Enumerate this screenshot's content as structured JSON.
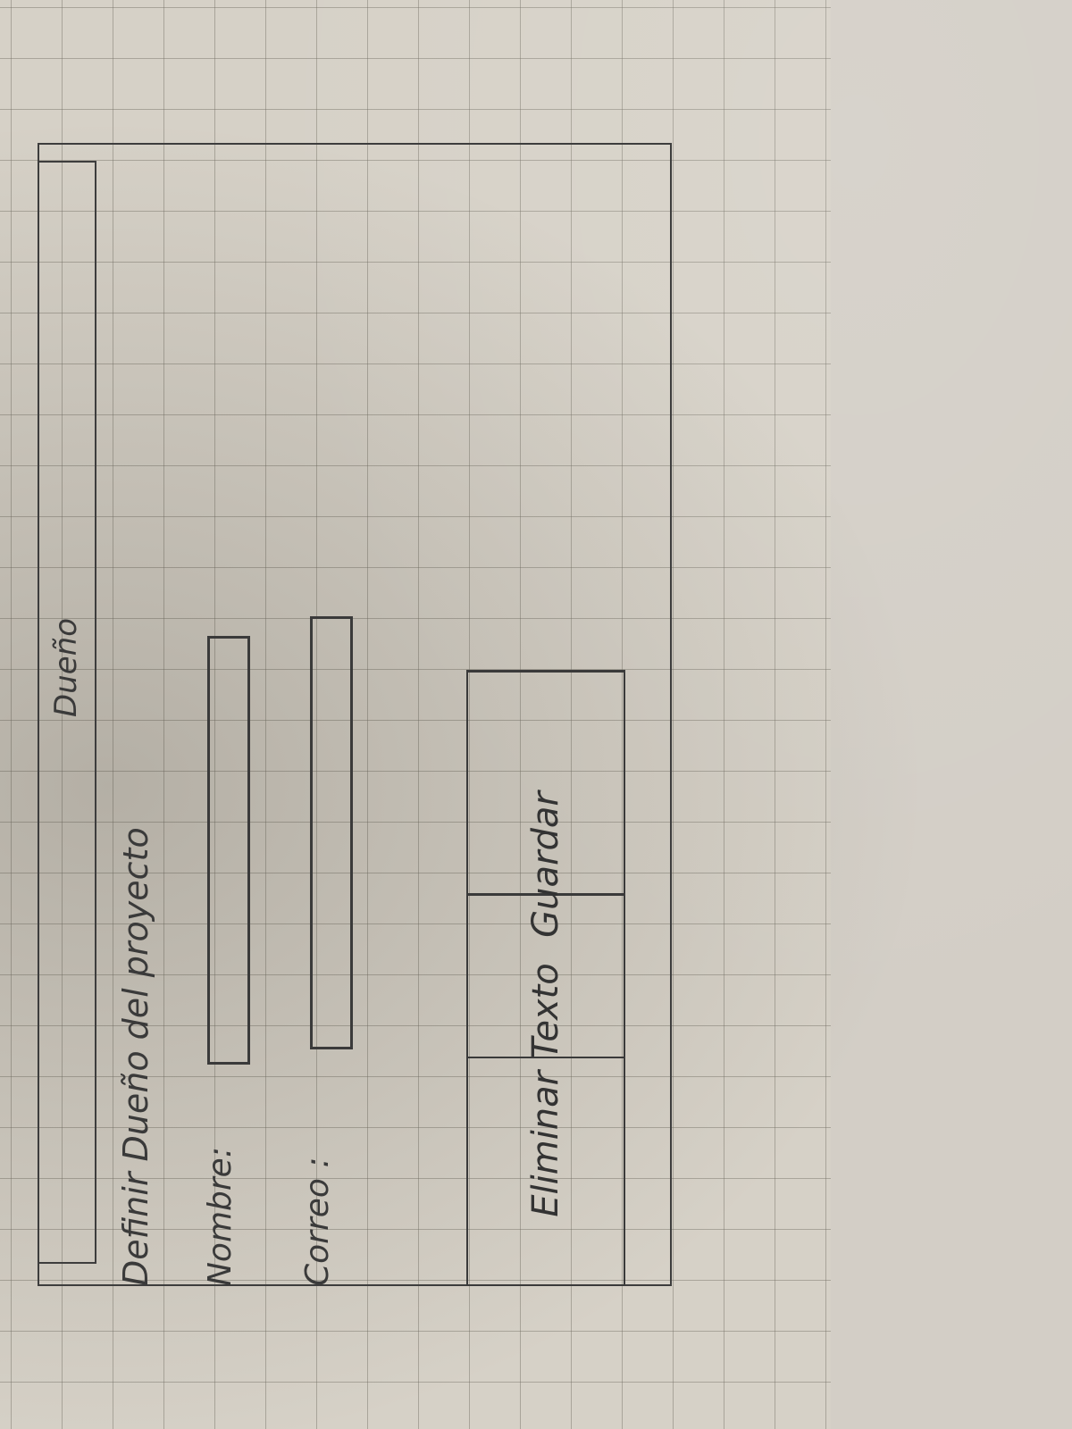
{
  "window": {
    "title": "Dueño",
    "heading": "Definir Dueño del proyecto"
  },
  "form": {
    "nombre_label": "Nombre:",
    "nombre_value": "",
    "correo_label": "Correo :",
    "correo_value": ""
  },
  "buttons": {
    "guardar_label": "Guardar",
    "eliminar_label": "Eliminar Texto"
  }
}
